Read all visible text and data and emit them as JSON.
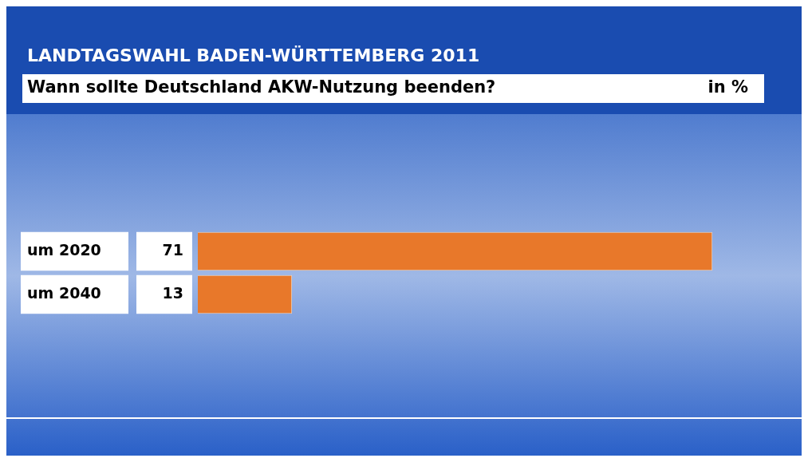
{
  "chart_data": {
    "type": "bar",
    "orientation": "horizontal",
    "title": "LANDTAGSWAHL BADEN-WÜRTTEMBERG 2011",
    "subtitle": "Wann sollte Deutschland AKW-Nutzung beenden?",
    "annotations": [
      "in %"
    ],
    "categories": [
      "um 2020",
      "um 2040"
    ],
    "values": [
      71,
      13
    ],
    "color": "#e8782a",
    "data_labels": true
  }
}
